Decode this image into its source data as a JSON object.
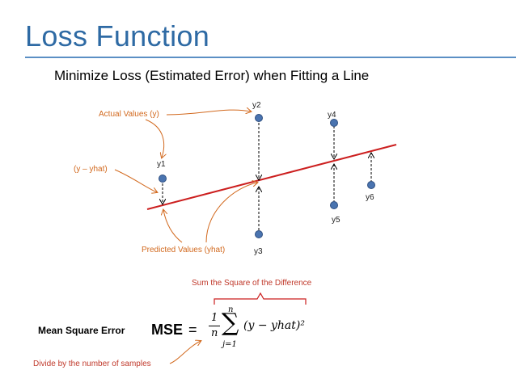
{
  "slide": {
    "title": "Loss Function",
    "subtitle": "Minimize Loss (Estimated Error) when Fitting a Line"
  },
  "annotations": {
    "actual_values": "Actual Values (y)",
    "difference": "(y – yhat)",
    "predicted_values": "Predicted Values (yhat)",
    "sum_square": "Sum the Square of the Difference",
    "divide": "Divide by the number of samples"
  },
  "points": {
    "y1": "y1",
    "y2": "y2",
    "y3": "y3",
    "y4": "y4",
    "y5": "y5",
    "y6": "y6"
  },
  "formula": {
    "label": "Mean Square Error",
    "mse": "MSE",
    "equals": "=",
    "numerator": "1",
    "denominator": "n",
    "sigma": "∑",
    "upper": "n",
    "lower": "j=1",
    "body": "(y − yhat)²"
  },
  "colors": {
    "title": "#2e6aa4",
    "rule": "#5b8fc4",
    "fit_line": "#cc1f1f",
    "point": "#4a74b0",
    "annotation": "#d2691e",
    "brace": "#cc1f1f"
  }
}
